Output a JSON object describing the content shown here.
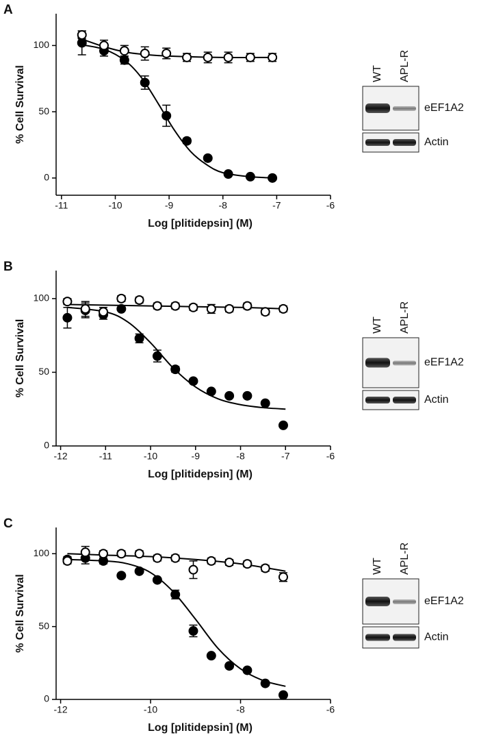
{
  "chart_data": [
    {
      "type": "scatter",
      "panel_label": "A",
      "xlabel": "Log [plitidepsin] (M)",
      "ylabel": "% Cell Survival",
      "xlim": [
        -11.1,
        -6
      ],
      "xticks": [
        -11,
        -10,
        -9,
        -8,
        -7,
        -6
      ],
      "ylim": [
        -13,
        124
      ],
      "yticks": [
        0,
        50,
        100
      ],
      "series": [
        {
          "marker": "filled",
          "color": "#000000",
          "x": [
            -10.62,
            -10.21,
            -9.83,
            -9.45,
            -9.05,
            -8.67,
            -8.28,
            -7.9,
            -7.49,
            -7.08
          ],
          "values": [
            102,
            96,
            89,
            72,
            47,
            28,
            15,
            3,
            1,
            0
          ],
          "errors": [
            9,
            4,
            3,
            5,
            8,
            2,
            1,
            1,
            1,
            1
          ]
        },
        {
          "marker": "open",
          "color": "#000000",
          "x": [
            -10.62,
            -10.21,
            -9.83,
            -9.45,
            -9.05,
            -8.67,
            -8.28,
            -7.9,
            -7.49,
            -7.08
          ],
          "values": [
            108,
            100,
            96,
            94,
            94,
            91,
            91,
            91,
            91,
            91
          ],
          "errors": [
            3,
            4,
            4,
            5,
            4,
            3,
            4,
            4,
            3,
            3
          ]
        }
      ],
      "fits": [
        {
          "x": [
            -10.7,
            -10.2,
            -9.8,
            -9.5,
            -9.2,
            -8.9,
            -8.6,
            -8.3,
            -8.0,
            -7.5,
            -7.0
          ],
          "values": [
            101,
            97,
            88,
            75,
            56,
            36,
            20,
            10,
            4,
            1,
            0
          ]
        },
        {
          "x": [
            -10.7,
            -10.2,
            -9.8,
            -9.4,
            -9.0,
            -8.0,
            -7.0
          ],
          "values": [
            106,
            99,
            95,
            93,
            92,
            91,
            91
          ]
        }
      ],
      "blot_lanes": [
        "WT",
        "APL-R"
      ],
      "blot_bands": [
        "eEF1A2",
        "Actin"
      ]
    },
    {
      "type": "scatter",
      "panel_label": "B",
      "xlabel": "Log [plitidepsin] (M)",
      "ylabel": "% Cell Survival",
      "xlim": [
        -12.1,
        -6
      ],
      "xticks": [
        -12,
        -11,
        -10,
        -9,
        -8,
        -7,
        -6
      ],
      "ylim": [
        0,
        119
      ],
      "yticks": [
        0,
        50,
        100
      ],
      "series": [
        {
          "marker": "filled",
          "color": "#000000",
          "x": [
            -11.85,
            -11.45,
            -11.05,
            -10.65,
            -10.25,
            -9.85,
            -9.45,
            -9.05,
            -8.65,
            -8.25,
            -7.85,
            -7.45,
            -7.05
          ],
          "values": [
            87,
            92,
            89,
            93,
            73,
            61,
            52,
            44,
            37,
            34,
            34,
            29,
            14
          ],
          "errors": [
            7,
            5,
            3,
            0,
            3,
            4,
            2,
            1,
            1,
            1,
            1,
            1,
            1
          ]
        },
        {
          "marker": "open",
          "color": "#000000",
          "x": [
            -11.85,
            -11.45,
            -11.05,
            -10.65,
            -10.25,
            -9.85,
            -9.45,
            -9.05,
            -8.65,
            -8.25,
            -7.85,
            -7.45,
            -7.05
          ],
          "values": [
            98,
            93,
            91,
            100,
            99,
            95,
            95,
            94,
            93,
            93,
            95,
            91,
            93
          ],
          "errors": [
            2,
            5,
            3,
            2,
            2,
            2,
            2,
            2,
            3,
            2,
            2,
            2,
            2
          ]
        }
      ],
      "fits": [
        {
          "x": [
            -11.85,
            -11.0,
            -10.5,
            -10.0,
            -9.5,
            -9.0,
            -8.5,
            -8.0,
            -7.5,
            -7.0
          ],
          "values": [
            94,
            91,
            84,
            70,
            53,
            40,
            32,
            28,
            26,
            25
          ]
        },
        {
          "x": [
            -11.85,
            -10.0,
            -8.0,
            -7.0
          ],
          "values": [
            96,
            95,
            94,
            93
          ]
        }
      ],
      "blot_lanes": [
        "WT",
        "APL-R"
      ],
      "blot_bands": [
        "eEF1A2",
        "Actin"
      ]
    },
    {
      "type": "scatter",
      "panel_label": "C",
      "xlabel": "Log [plitidepsin] (M)",
      "ylabel": "% Cell Survival",
      "xlim": [
        -12.1,
        -6
      ],
      "xticks": [
        -12,
        -10,
        -8,
        -6
      ],
      "ylim": [
        0,
        118
      ],
      "yticks": [
        0,
        50,
        100
      ],
      "series": [
        {
          "marker": "filled",
          "color": "#000000",
          "x": [
            -11.85,
            -11.45,
            -11.05,
            -10.65,
            -10.25,
            -9.85,
            -9.45,
            -9.05,
            -8.65,
            -8.25,
            -7.85,
            -7.45,
            -7.05
          ],
          "values": [
            96,
            97,
            95,
            85,
            88,
            82,
            72,
            47,
            30,
            23,
            20,
            11,
            3
          ],
          "errors": [
            2,
            4,
            2,
            0,
            1,
            1,
            3,
            4,
            1,
            1,
            1,
            1,
            1
          ]
        },
        {
          "marker": "open",
          "color": "#000000",
          "x": [
            -11.85,
            -11.45,
            -11.05,
            -10.65,
            -10.25,
            -9.85,
            -9.45,
            -9.05,
            -8.65,
            -8.25,
            -7.85,
            -7.45,
            -7.05
          ],
          "values": [
            95,
            101,
            100,
            100,
            100,
            97,
            97,
            89,
            95,
            94,
            93,
            90,
            84
          ],
          "errors": [
            2,
            4,
            2,
            2,
            2,
            2,
            2,
            6,
            2,
            2,
            2,
            2,
            3
          ]
        }
      ],
      "fits": [
        {
          "x": [
            -11.85,
            -11.0,
            -10.5,
            -10.0,
            -9.5,
            -9.0,
            -8.5,
            -8.0,
            -7.5,
            -7.0
          ],
          "values": [
            96,
            95,
            93,
            87,
            74,
            55,
            35,
            21,
            13,
            9
          ]
        },
        {
          "x": [
            -11.85,
            -11.0,
            -10.0,
            -9.0,
            -8.0,
            -7.0
          ],
          "values": [
            100,
            99,
            98,
            96,
            93,
            88
          ]
        }
      ],
      "blot_lanes": [
        "WT",
        "APL-R"
      ],
      "blot_bands": [
        "eEF1A2",
        "Actin"
      ]
    }
  ]
}
